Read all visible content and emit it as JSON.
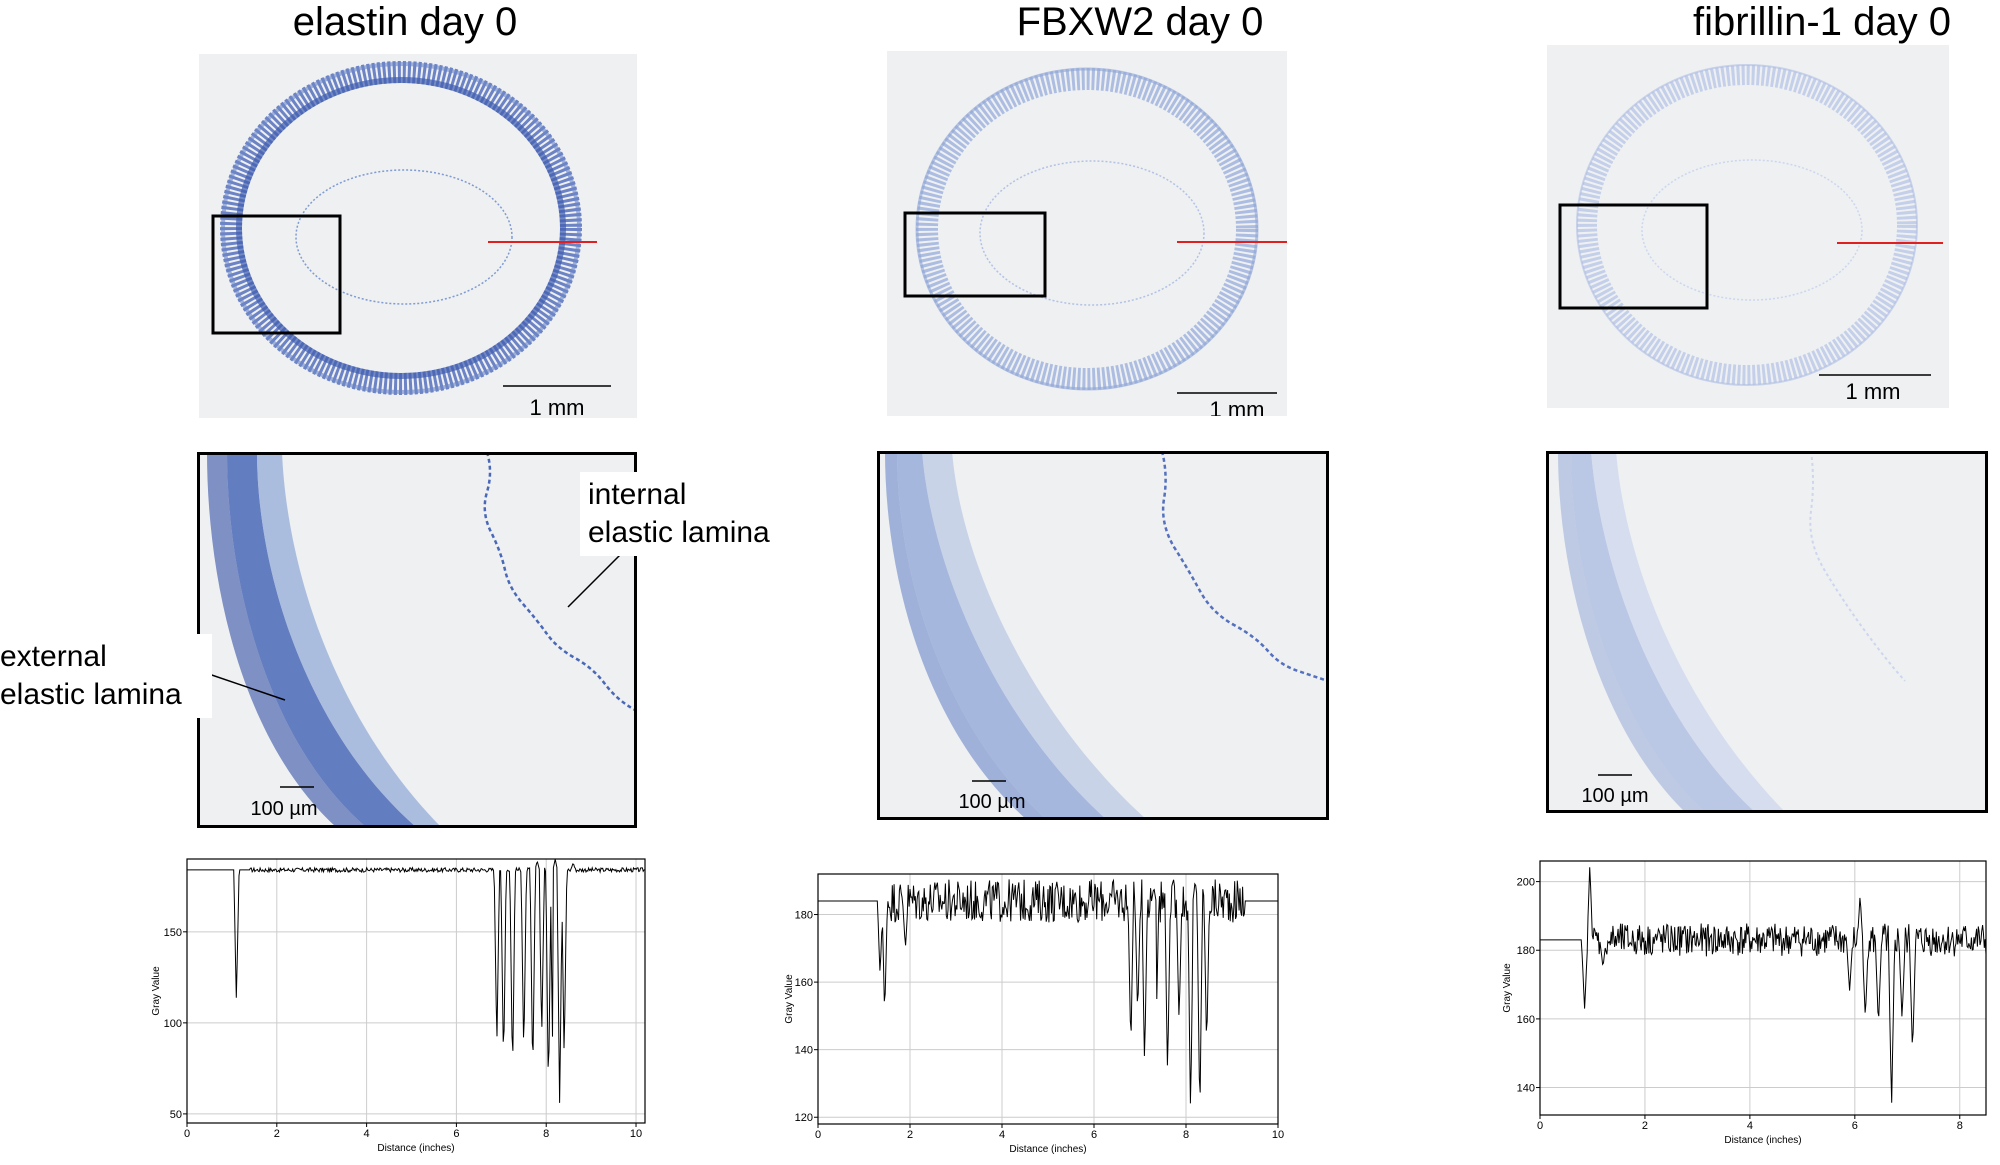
{
  "columns": [
    {
      "title": "elastin day 0",
      "overview_scale": "1 mm",
      "zoom_scale": "100 µm"
    },
    {
      "title": "FBXW2 day 0",
      "overview_scale": "1 mm",
      "zoom_scale": "100 µm"
    },
    {
      "title": "fibrillin-1 day 0",
      "overview_scale": "1 mm",
      "zoom_scale": "100 µm"
    }
  ],
  "annotations": {
    "internal": "internal\nelastic lamina",
    "external": "external\nelastic lamina"
  },
  "colors": {
    "stain_strong": "#4a68b8",
    "stain_medium": "#7f9bd1",
    "stain_weak": "#aabbe0",
    "background": "#eef0f2",
    "profile_line": "#e02020"
  },
  "chart_data": [
    {
      "type": "line",
      "xlabel": "Distance (inches)",
      "ylabel": "Gray Value",
      "xlim": [
        0,
        10.2
      ],
      "ylim": [
        45,
        190
      ],
      "xticks": [
        0,
        2,
        4,
        6,
        8,
        10
      ],
      "yticks": [
        50,
        100,
        150
      ],
      "grid": true,
      "baseline": 184,
      "noise": 1.2,
      "dips": [
        [
          1.1,
          112
        ],
        [
          6.9,
          85
        ],
        [
          7.05,
          75
        ],
        [
          7.25,
          70
        ],
        [
          7.5,
          80
        ],
        [
          7.7,
          68
        ],
        [
          7.9,
          90
        ],
        [
          8.05,
          60
        ],
        [
          8.15,
          75
        ],
        [
          8.3,
          50
        ],
        [
          8.4,
          78
        ]
      ],
      "spikes": [
        [
          7.8,
          189
        ],
        [
          8.2,
          190
        ],
        [
          8.6,
          188
        ]
      ]
    },
    {
      "type": "line",
      "xlabel": "Distance (inches)",
      "ylabel": "Gray Value",
      "xlim": [
        0,
        10
      ],
      "ylim": [
        118,
        192
      ],
      "xticks": [
        0,
        2,
        4,
        6,
        8,
        10
      ],
      "yticks": [
        120,
        140,
        160,
        180
      ],
      "grid": true,
      "baseline": 184,
      "noise": 4,
      "dips": [
        [
          1.35,
          162
        ],
        [
          1.45,
          150
        ],
        [
          1.9,
          170
        ],
        [
          6.8,
          140
        ],
        [
          6.95,
          150
        ],
        [
          7.1,
          135
        ],
        [
          7.35,
          145
        ],
        [
          7.6,
          132
        ],
        [
          7.85,
          148
        ],
        [
          8.1,
          120
        ],
        [
          8.3,
          119
        ],
        [
          8.45,
          140
        ]
      ],
      "spikes": [
        [
          7.3,
          188
        ],
        [
          8.2,
          190
        ]
      ]
    },
    {
      "type": "line",
      "xlabel": "Distance (inches)",
      "ylabel": "Gray Value",
      "xlim": [
        0,
        8.5
      ],
      "ylim": [
        132,
        206
      ],
      "xticks": [
        0,
        2,
        4,
        6,
        8
      ],
      "yticks": [
        140,
        160,
        180,
        200
      ],
      "grid": true,
      "baseline": 183,
      "noise": 3,
      "dips": [
        [
          0.85,
          163
        ],
        [
          1.2,
          175
        ],
        [
          5.9,
          168
        ],
        [
          6.2,
          160
        ],
        [
          6.45,
          158
        ],
        [
          6.7,
          134
        ],
        [
          6.9,
          160
        ],
        [
          7.1,
          150
        ]
      ],
      "spikes": [
        [
          0.95,
          205
        ],
        [
          6.1,
          196
        ]
      ]
    }
  ]
}
